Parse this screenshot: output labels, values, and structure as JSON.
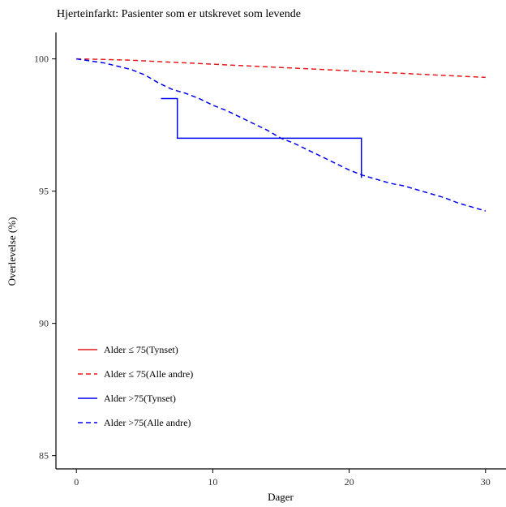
{
  "chart_data": {
    "type": "line",
    "title": "Hjerteinfarkt: Pasienter som er utskrevet som levende",
    "xlabel": "Dager",
    "ylabel": "Overlevelse (%)",
    "xlim": [
      -1.5,
      31.5
    ],
    "ylim": [
      84.5,
      101
    ],
    "xticks": [
      0,
      10,
      20,
      30
    ],
    "yticks": [
      85,
      90,
      95,
      100
    ],
    "grid": false,
    "legend_position": "bottom-left",
    "series": [
      {
        "name": "Alder ≤ 75(Tynset)",
        "color": "#e31a1c",
        "dash": "solid",
        "step": true,
        "x": [],
        "y": []
      },
      {
        "name": "Alder ≤ 75(Alle andre)",
        "color": "#e31a1c",
        "dash": "dashed",
        "step": false,
        "x": [
          0,
          2,
          4,
          6,
          8,
          10,
          12,
          14,
          16,
          18,
          20,
          22,
          24,
          26,
          28,
          30
        ],
        "y": [
          100,
          99.98,
          99.95,
          99.9,
          99.85,
          99.8,
          99.75,
          99.7,
          99.65,
          99.6,
          99.55,
          99.5,
          99.45,
          99.4,
          99.35,
          99.3
        ]
      },
      {
        "name": "Alder >75(Tynset)",
        "color": "#0000ee",
        "dash": "solid",
        "step": true,
        "x": [
          6.2,
          7.4,
          7.4,
          20.9,
          20.9
        ],
        "y": [
          98.5,
          98.5,
          97.0,
          97.0,
          95.5
        ]
      },
      {
        "name": "Alder >75(Alle andre)",
        "color": "#0000ee",
        "dash": "dashed",
        "step": false,
        "x": [
          0,
          2,
          4,
          5,
          6,
          7,
          8,
          9,
          10,
          11,
          12,
          13,
          14,
          15,
          16,
          17,
          18,
          19,
          20,
          21,
          22,
          23,
          24,
          25,
          26,
          27,
          28,
          29,
          30
        ],
        "y": [
          100,
          99.85,
          99.6,
          99.4,
          99.1,
          98.85,
          98.7,
          98.5,
          98.25,
          98.05,
          97.8,
          97.55,
          97.3,
          97.0,
          96.8,
          96.55,
          96.3,
          96.05,
          95.8,
          95.6,
          95.45,
          95.3,
          95.2,
          95.05,
          94.9,
          94.75,
          94.55,
          94.4,
          94.25
        ]
      }
    ]
  }
}
